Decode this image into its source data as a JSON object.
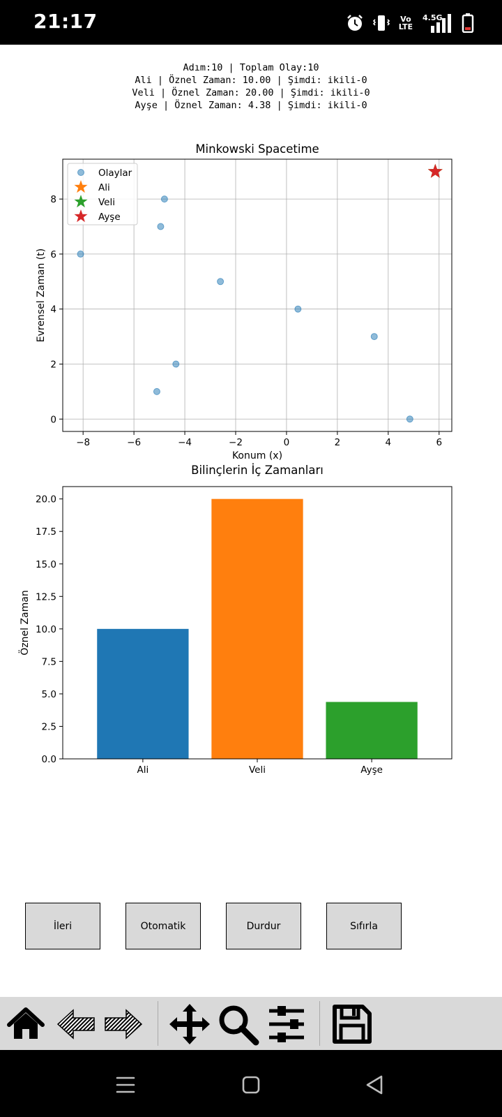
{
  "status_bar": {
    "time": "21:17",
    "network": "4.5G",
    "volte": [
      "Vo",
      "LTE"
    ],
    "icons": [
      "alarm-icon",
      "vibrate-icon",
      "volte-icon",
      "signal-icon",
      "battery-icon"
    ]
  },
  "info": {
    "lines": [
      "Adım:10 | Toplam Olay:10",
      "Ali | Öznel Zaman: 10.00 | Şimdi: ikili-0",
      "Veli | Öznel Zaman: 20.00 | Şimdi: ikili-0",
      "Ayşe | Öznel Zaman: 4.38 | Şimdi: ikili-0"
    ]
  },
  "chart_data": [
    {
      "type": "scatter",
      "title": "Minkowski Spacetime",
      "xlabel": "Konum (x)",
      "ylabel": "Evrensel Zaman (t)",
      "xlim": [
        -8.8,
        6.5
      ],
      "ylim": [
        -0.45,
        9.45
      ],
      "xticks": [
        -8,
        -6,
        -4,
        -2,
        0,
        2,
        4,
        6
      ],
      "yticks": [
        0,
        2,
        4,
        6,
        8
      ],
      "grid": true,
      "legend_position": "top-left",
      "series": [
        {
          "name": "Olaylar",
          "marker": "circle",
          "color": "#1f77b4",
          "points": [
            {
              "x": 4.85,
              "t": 0
            },
            {
              "x": -5.1,
              "t": 1
            },
            {
              "x": -4.35,
              "t": 2
            },
            {
              "x": 3.45,
              "t": 3
            },
            {
              "x": 0.45,
              "t": 4
            },
            {
              "x": -2.6,
              "t": 5
            },
            {
              "x": -8.1,
              "t": 6
            },
            {
              "x": -4.95,
              "t": 7
            },
            {
              "x": -4.8,
              "t": 8
            }
          ]
        },
        {
          "name": "Ali",
          "marker": "star",
          "color": "#ff7f0e",
          "points": [
            {
              "x": 5.85,
              "t": 9
            }
          ]
        },
        {
          "name": "Veli",
          "marker": "star",
          "color": "#2ca02c",
          "points": [
            {
              "x": 5.85,
              "t": 9
            }
          ]
        },
        {
          "name": "Ayşe",
          "marker": "star",
          "color": "#d62728",
          "points": [
            {
              "x": 5.85,
              "t": 9
            }
          ]
        }
      ]
    },
    {
      "type": "bar",
      "title": "Bilinçlerin İç Zamanları",
      "xlabel": "",
      "ylabel": "Öznel Zaman",
      "categories": [
        "Ali",
        "Veli",
        "Ayşe"
      ],
      "values": [
        10.0,
        20.0,
        4.38
      ],
      "colors": [
        "#1f77b4",
        "#ff7f0e",
        "#2ca02c"
      ],
      "ylim": [
        0,
        20.95
      ],
      "yticks": [
        0.0,
        2.5,
        5.0,
        7.5,
        10.0,
        12.5,
        15.0,
        17.5,
        20.0
      ],
      "grid": false
    }
  ],
  "buttons": [
    {
      "label": "İleri"
    },
    {
      "label": "Otomatik"
    },
    {
      "label": "Durdur"
    },
    {
      "label": "Sıfırla"
    }
  ],
  "toolbar": {
    "icons": [
      "home-icon",
      "back-arrow-icon",
      "forward-arrow-icon",
      "pan-icon",
      "zoom-icon",
      "configure-subplots-icon",
      "save-icon"
    ]
  },
  "nav_bar": {
    "icons": [
      "menu-icon",
      "home-square-icon",
      "back-triangle-icon"
    ]
  }
}
